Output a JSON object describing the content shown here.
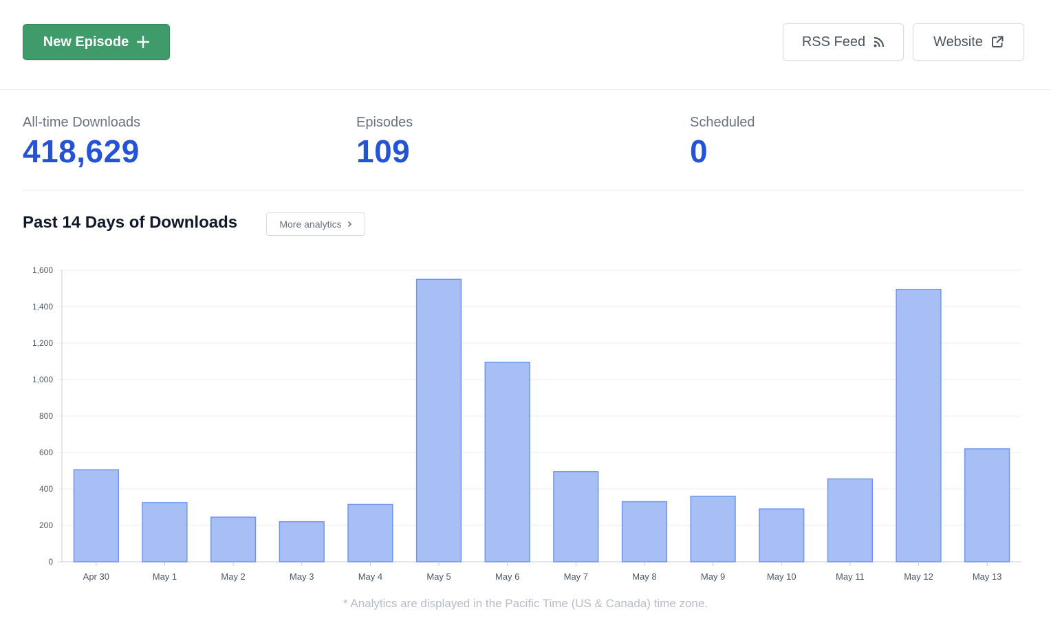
{
  "header": {
    "new_episode_label": "New Episode",
    "rss_label": "RSS Feed",
    "website_label": "Website"
  },
  "stats": {
    "downloads_label": "All-time Downloads",
    "downloads_value": "418,629",
    "episodes_label": "Episodes",
    "episodes_value": "109",
    "scheduled_label": "Scheduled",
    "scheduled_value": "0"
  },
  "chart_section": {
    "title": "Past 14 Days of Downloads",
    "more_label": "More analytics",
    "footnote": "* Analytics are displayed in the Pacific Time (US & Canada) time zone."
  },
  "colors": {
    "accent": "#2453d6",
    "primary_button": "#3f9b6a",
    "bar_fill": "#a8bff5",
    "bar_stroke": "#6f95ef"
  },
  "chart_data": {
    "type": "bar",
    "categories": [
      "Apr 30",
      "May 1",
      "May 2",
      "May 3",
      "May 4",
      "May 5",
      "May 6",
      "May 7",
      "May 8",
      "May 9",
      "May 10",
      "May 11",
      "May 12",
      "May 13"
    ],
    "values": [
      505,
      325,
      245,
      220,
      315,
      1550,
      1095,
      495,
      330,
      360,
      290,
      455,
      1495,
      620
    ],
    "ylim": [
      0,
      1600
    ],
    "yticks": [
      "0",
      "200",
      "400",
      "600",
      "800",
      "1,000",
      "1,200",
      "1,400",
      "1,600"
    ],
    "ytick_values": [
      0,
      200,
      400,
      600,
      800,
      1000,
      1200,
      1400,
      1600
    ],
    "grid": true,
    "legend": "none"
  }
}
